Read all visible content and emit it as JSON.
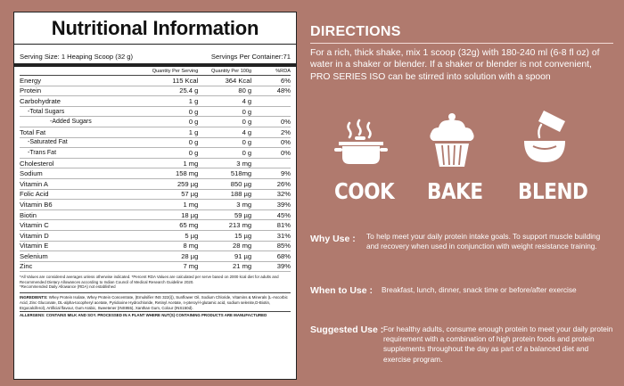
{
  "nutrition": {
    "title": "Nutritional Information",
    "serving_size": "Serving Size: 1 Heaping Scoop (32 g)",
    "servings_per_container": "Servings Per Container:71",
    "col_headers": [
      "Quantity Per Serving",
      "Quantity Per 100g",
      "%RDA"
    ],
    "rows": [
      {
        "name": "Energy",
        "serving": "115 Kcal",
        "per100": "364 Kcal",
        "rda": "6%",
        "indent": 0
      },
      {
        "name": "Protein",
        "serving": "25.4 g",
        "per100": "80 g",
        "rda": "48%",
        "indent": 0
      },
      {
        "name": "Carbohydrate",
        "serving": "1 g",
        "per100": "4 g",
        "rda": "",
        "indent": 0
      },
      {
        "name": "-Total Sugars",
        "serving": "0 g",
        "per100": "0 g",
        "rda": "",
        "indent": 1
      },
      {
        "name": "-Added Sugars",
        "serving": "0 g",
        "per100": "0 g",
        "rda": "0%",
        "indent": 2
      },
      {
        "name": "Total Fat",
        "serving": "1 g",
        "per100": "4 g",
        "rda": "2%",
        "indent": 0
      },
      {
        "name": "-Saturated Fat",
        "serving": "0 g",
        "per100": "0 g",
        "rda": "0%",
        "indent": 1
      },
      {
        "name": "-Trans Fat",
        "serving": "0 g",
        "per100": "0 g",
        "rda": "0%",
        "indent": 1
      },
      {
        "name": "Cholesterol",
        "serving": "1 mg",
        "per100": "3 mg",
        "rda": "",
        "indent": 0
      },
      {
        "name": "Sodium",
        "serving": "158 mg",
        "per100": "518mg",
        "rda": "9%",
        "indent": 0
      },
      {
        "name": "Vitamin A",
        "serving": "259 µg",
        "per100": "850 µg",
        "rda": "26%",
        "indent": 0
      },
      {
        "name": "Folic Acid",
        "serving": "57 µg",
        "per100": "188 µg",
        "rda": "32%",
        "indent": 0
      },
      {
        "name": "Vitamin B6",
        "serving": "1 mg",
        "per100": "3 mg",
        "rda": "39%",
        "indent": 0
      },
      {
        "name": "Biotin",
        "serving": "18 µg",
        "per100": "59 µg",
        "rda": "45%",
        "indent": 0
      },
      {
        "name": "Vitamin C",
        "serving": "65 mg",
        "per100": "213 mg",
        "rda": "81%",
        "indent": 0
      },
      {
        "name": "Vitamin D",
        "serving": "5 µg",
        "per100": "15 µg",
        "rda": "31%",
        "indent": 0
      },
      {
        "name": "Vitamin E",
        "serving": "8 mg",
        "per100": "28 mg",
        "rda": "85%",
        "indent": 0
      },
      {
        "name": "Selenium",
        "serving": "28 µg",
        "per100": "91 µg",
        "rda": "68%",
        "indent": 0
      },
      {
        "name": "Zinc",
        "serving": "7 mg",
        "per100": "21 mg",
        "rda": "39%",
        "indent": 0
      }
    ],
    "footnote_1": "*All Values are considered averages unless otherwise indicated. *Percent RDA Values are calculated per serve based on 2000 kcal diet for adults and Recommended Dietary Allowances according to Indian Council of Medical Research Guideline 2020.",
    "footnote_2": "*Recommended Daily Allowance (RDA) not established",
    "ingredients_label": "INGREDIENTS:",
    "ingredients_text": "Whey Protein Isolate, Whey Protein Concentrate, (Emulsifier INS 322(i)), Sunflower Oil, Sodium Chloride, Vitamins & Minerals (L-Ascorbic Acid, Zinc Gluconate, DL-alpha-tocopheryl acetate, Pyridoxine Hydrochloride, Retinyl Acetate, n-pteroyl-l-glutamic acid, sodium selenite,D-Biotin, Ergocalciferol), Artificial flavour, Gum Arabic, Sweetener (INS955), Xanthan Gum, Colour (INS150d).",
    "allergens": "ALLERGENS: CONTAINS MILK AND SOY. PROCESSED IN A PLANT WHERE NUT(S) CONTAINING PRODUCTS ARE MANUFACTURED"
  },
  "directions": {
    "title": "DIRECTIONS",
    "text": "For a rich, thick shake, mix 1 scoop (32g) with 180-240 ml (6-8 fl oz) of water in a shaker or blender. If a shaker or blender is not convenient, PRO SERIES ISO can be stirred into solution with a spoon",
    "methods": [
      {
        "label": "COOK",
        "icon": "cooking-pot-icon"
      },
      {
        "label": "BAKE",
        "icon": "cupcake-icon"
      },
      {
        "label": "BLEND",
        "icon": "blender-icon"
      }
    ],
    "why_use_label": "Why Use :",
    "why_use_text": "To help meet your daily protein intake goals. To support muscle building and recovery when used in conjunction with weight resistance training.",
    "when_label": "When to Use :",
    "when_text": "Breakfast, lunch, dinner, snack time or before/after exercise",
    "suggested_label": "Suggested Use :",
    "suggested_text": "For healthy adults, consume enough protein to meet your daily protein requirement with a combination of high protein foods and protein supplements throughout the day as part of a balanced diet and exercise program."
  }
}
